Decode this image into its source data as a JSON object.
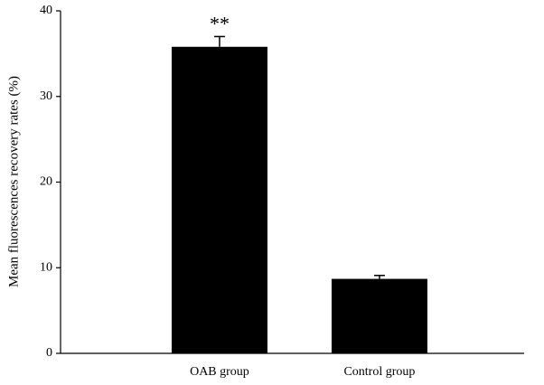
{
  "chart_data": {
    "type": "bar",
    "ylabel": "Mean fluorescences recovery rates (%)",
    "categories": [
      "OAB  group",
      "Control group"
    ],
    "values": [
      35.8,
      8.7
    ],
    "errors": [
      1.2,
      0.4
    ],
    "annotations": [
      "**",
      null
    ],
    "color": "#000000",
    "ylim": [
      0,
      40
    ],
    "yticks": [
      0,
      10,
      20,
      30,
      40
    ],
    "grid": false
  }
}
